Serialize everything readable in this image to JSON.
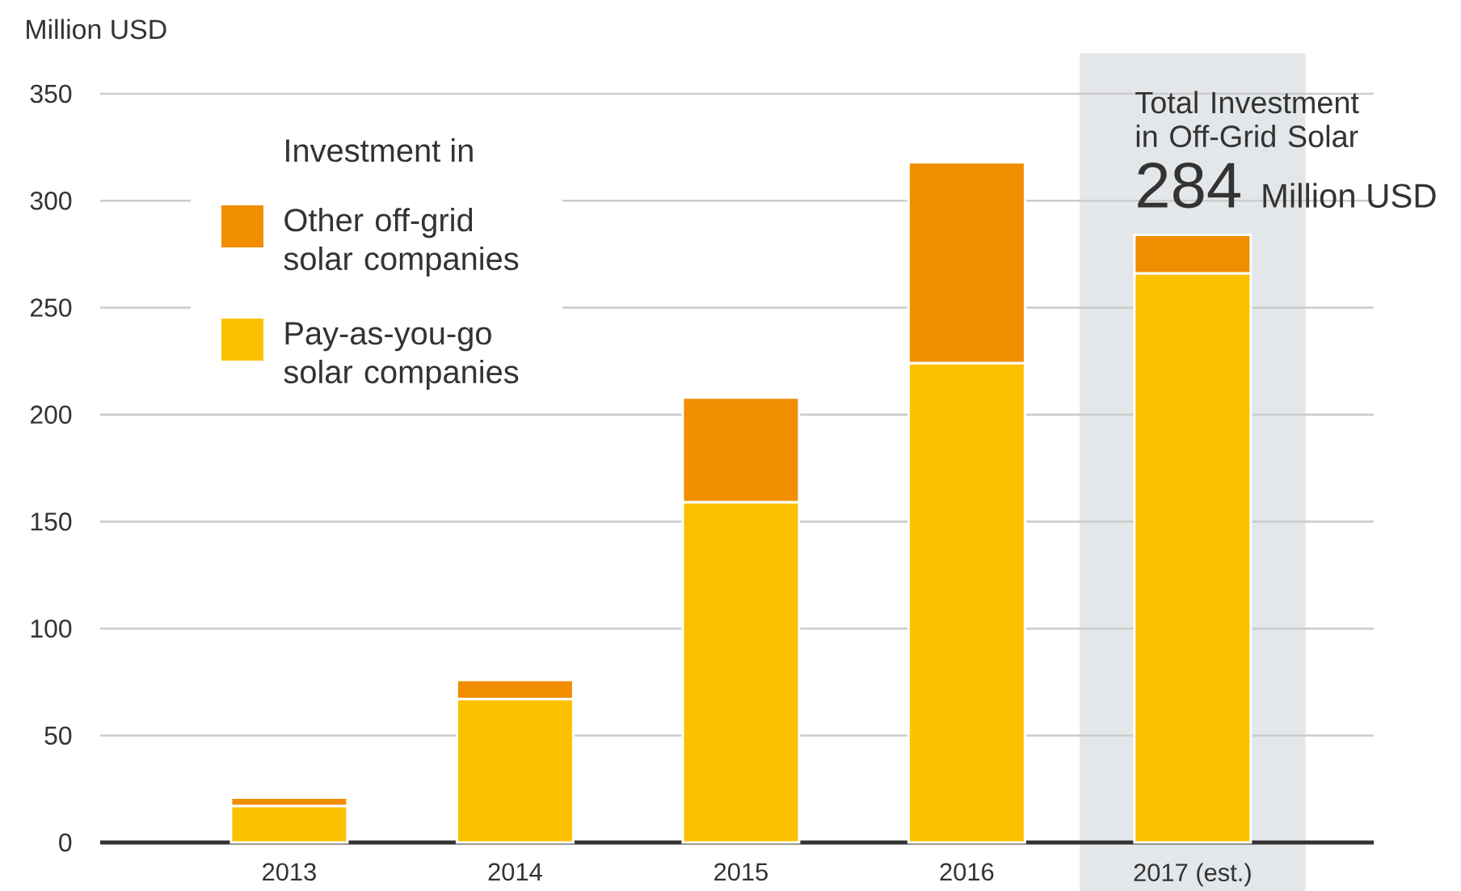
{
  "chart_data": {
    "type": "bar",
    "stacked": true,
    "ylabel": "Million USD",
    "legend_title": "Investment in",
    "categories": [
      "2013",
      "2014",
      "2015",
      "2016",
      "2017 (est.)"
    ],
    "series": [
      {
        "name": "Pay-as-you-go solar companies",
        "color": "#fcc200",
        "values": [
          17,
          67,
          159,
          224,
          266
        ]
      },
      {
        "name": "Other off-grid solar companies",
        "color": "#f08e00",
        "values": [
          4,
          9,
          49,
          94,
          18
        ]
      }
    ],
    "ylim": [
      0,
      350
    ],
    "yticks": [
      0,
      50,
      100,
      150,
      200,
      250,
      300,
      350
    ],
    "grid": "y",
    "legend": "top left",
    "totals": [
      null,
      null,
      null,
      null,
      "284"
    ],
    "annotations": [
      "Total Investment in Off-Grid Solar",
      "Million USD"
    ],
    "bands": [
      {
        "axis": "x",
        "from": "2017 (est.)",
        "to": "2017 (est.)",
        "color": "#e4e7ea"
      }
    ]
  }
}
